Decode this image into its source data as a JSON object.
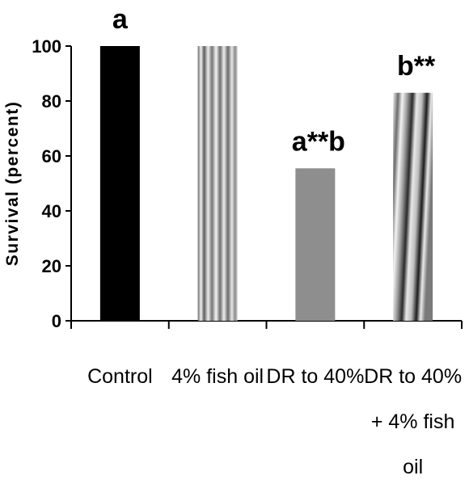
{
  "chart_data": {
    "type": "bar",
    "title": "",
    "xlabel": "",
    "ylabel": "Survival (percent)",
    "ylim": [
      0,
      100
    ],
    "yticks": [
      0,
      20,
      40,
      60,
      80,
      100
    ],
    "grid": false,
    "legend": "none",
    "categories": [
      [
        "Control"
      ],
      [
        "4% fish oil"
      ],
      [
        "DR to 40%"
      ],
      [
        "DR to 40%",
        "+ 4% fish",
        "oil"
      ]
    ],
    "values": [
      100,
      100,
      55.5,
      83
    ],
    "annotations": [
      "a",
      "",
      "a**b",
      "b**"
    ],
    "bar_styles": [
      {
        "fill": "solid",
        "color": "#000000"
      },
      {
        "fill": "vertical-stripes",
        "color": "#8c8c8c"
      },
      {
        "fill": "solid",
        "color": "#8e8e8e"
      },
      {
        "fill": "diagonal-stripes",
        "color": "#9a9a9a"
      }
    ]
  }
}
